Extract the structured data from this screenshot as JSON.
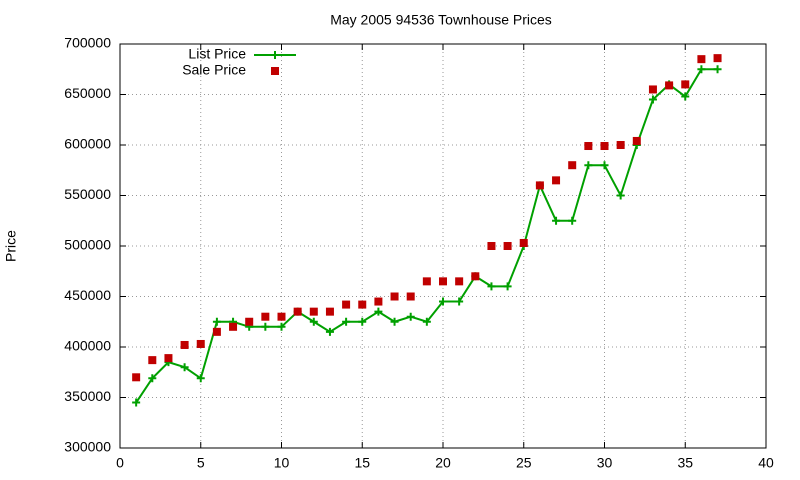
{
  "chart_data": {
    "type": "line",
    "title": "May 2005 94536 Townhouse Prices",
    "y_label": "Price",
    "x": [
      1,
      2,
      3,
      4,
      5,
      6,
      7,
      8,
      9,
      10,
      11,
      12,
      13,
      14,
      15,
      16,
      17,
      18,
      19,
      20,
      21,
      22,
      23,
      24,
      25,
      26,
      27,
      28,
      29,
      30,
      31,
      32,
      33,
      34,
      35,
      36,
      37
    ],
    "series": [
      {
        "name": "List Price",
        "color": "#00a000",
        "style": "linespoints",
        "values": [
          345000,
          369000,
          385000,
          380000,
          369000,
          425000,
          425000,
          420000,
          420000,
          420000,
          435000,
          425000,
          415000,
          425000,
          425000,
          435000,
          425000,
          430000,
          425000,
          445000,
          445000,
          470000,
          460000,
          460000,
          500000,
          560000,
          525000,
          525000,
          580000,
          580000,
          550000,
          600000,
          645000,
          660000,
          648000,
          675000,
          675000
        ]
      },
      {
        "name": "Sale Price",
        "color": "#c00000",
        "style": "points",
        "values": [
          370000,
          387000,
          389000,
          402000,
          403000,
          415000,
          420000,
          425000,
          430000,
          430000,
          435000,
          435000,
          435000,
          442000,
          442000,
          445000,
          450000,
          450000,
          465000,
          465000,
          465000,
          470000,
          500000,
          500000,
          503000,
          560000,
          565000,
          580000,
          599000,
          599000,
          600000,
          604000,
          655000,
          659000,
          660000,
          685000,
          686000
        ]
      }
    ],
    "xlim": [
      0,
      40
    ],
    "xticks": [
      0,
      5,
      10,
      15,
      20,
      25,
      30,
      35,
      40
    ],
    "ylim": [
      300000,
      700000
    ],
    "yticks": [
      300000,
      350000,
      400000,
      450000,
      500000,
      550000,
      600000,
      650000,
      700000
    ],
    "grid": true,
    "legend": "top-left"
  }
}
